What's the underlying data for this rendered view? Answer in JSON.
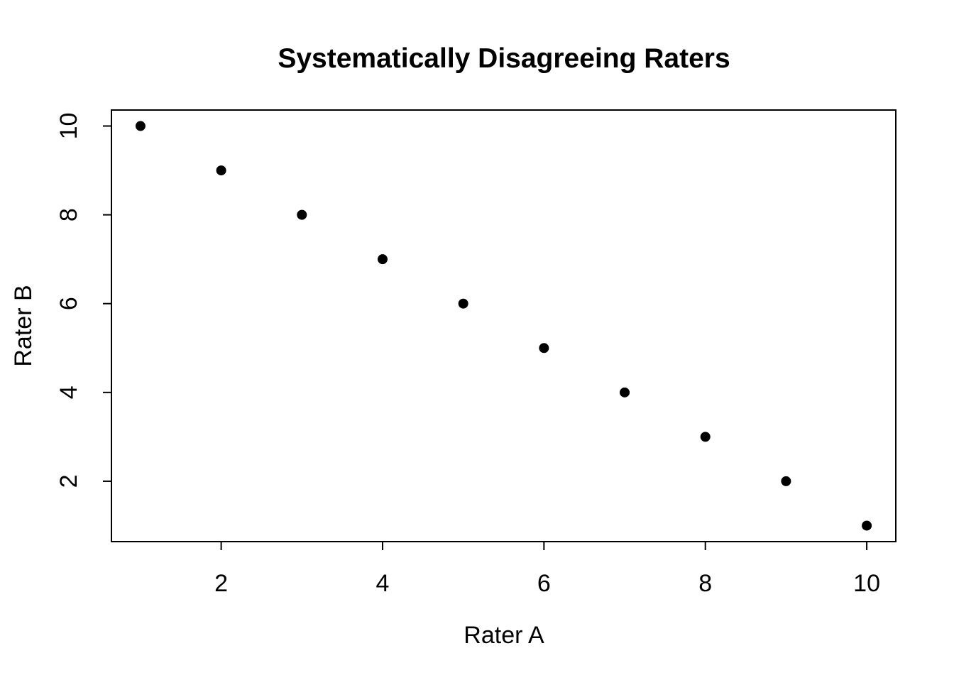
{
  "page": {
    "background_color": "#ffffff",
    "text_color": "#000000"
  },
  "chart_data": {
    "type": "scatter",
    "title": "Systematically Disagreeing Raters",
    "xlabel": "Rater A",
    "ylabel": "Rater B",
    "x": [
      1,
      2,
      3,
      4,
      5,
      6,
      7,
      8,
      9,
      10
    ],
    "y": [
      10,
      9,
      8,
      7,
      6,
      5,
      4,
      3,
      2,
      1
    ],
    "xticks": [
      2,
      4,
      6,
      8,
      10
    ],
    "yticks": [
      2,
      4,
      6,
      8,
      10
    ],
    "xlim": [
      0.64,
      10.36
    ],
    "ylim": [
      0.64,
      10.36
    ],
    "grid": false,
    "legend": null,
    "point_style": {
      "shape": "filled-circle",
      "color": "#000000",
      "radius_px": 7
    },
    "axis_color": "#000000",
    "box": true
  }
}
